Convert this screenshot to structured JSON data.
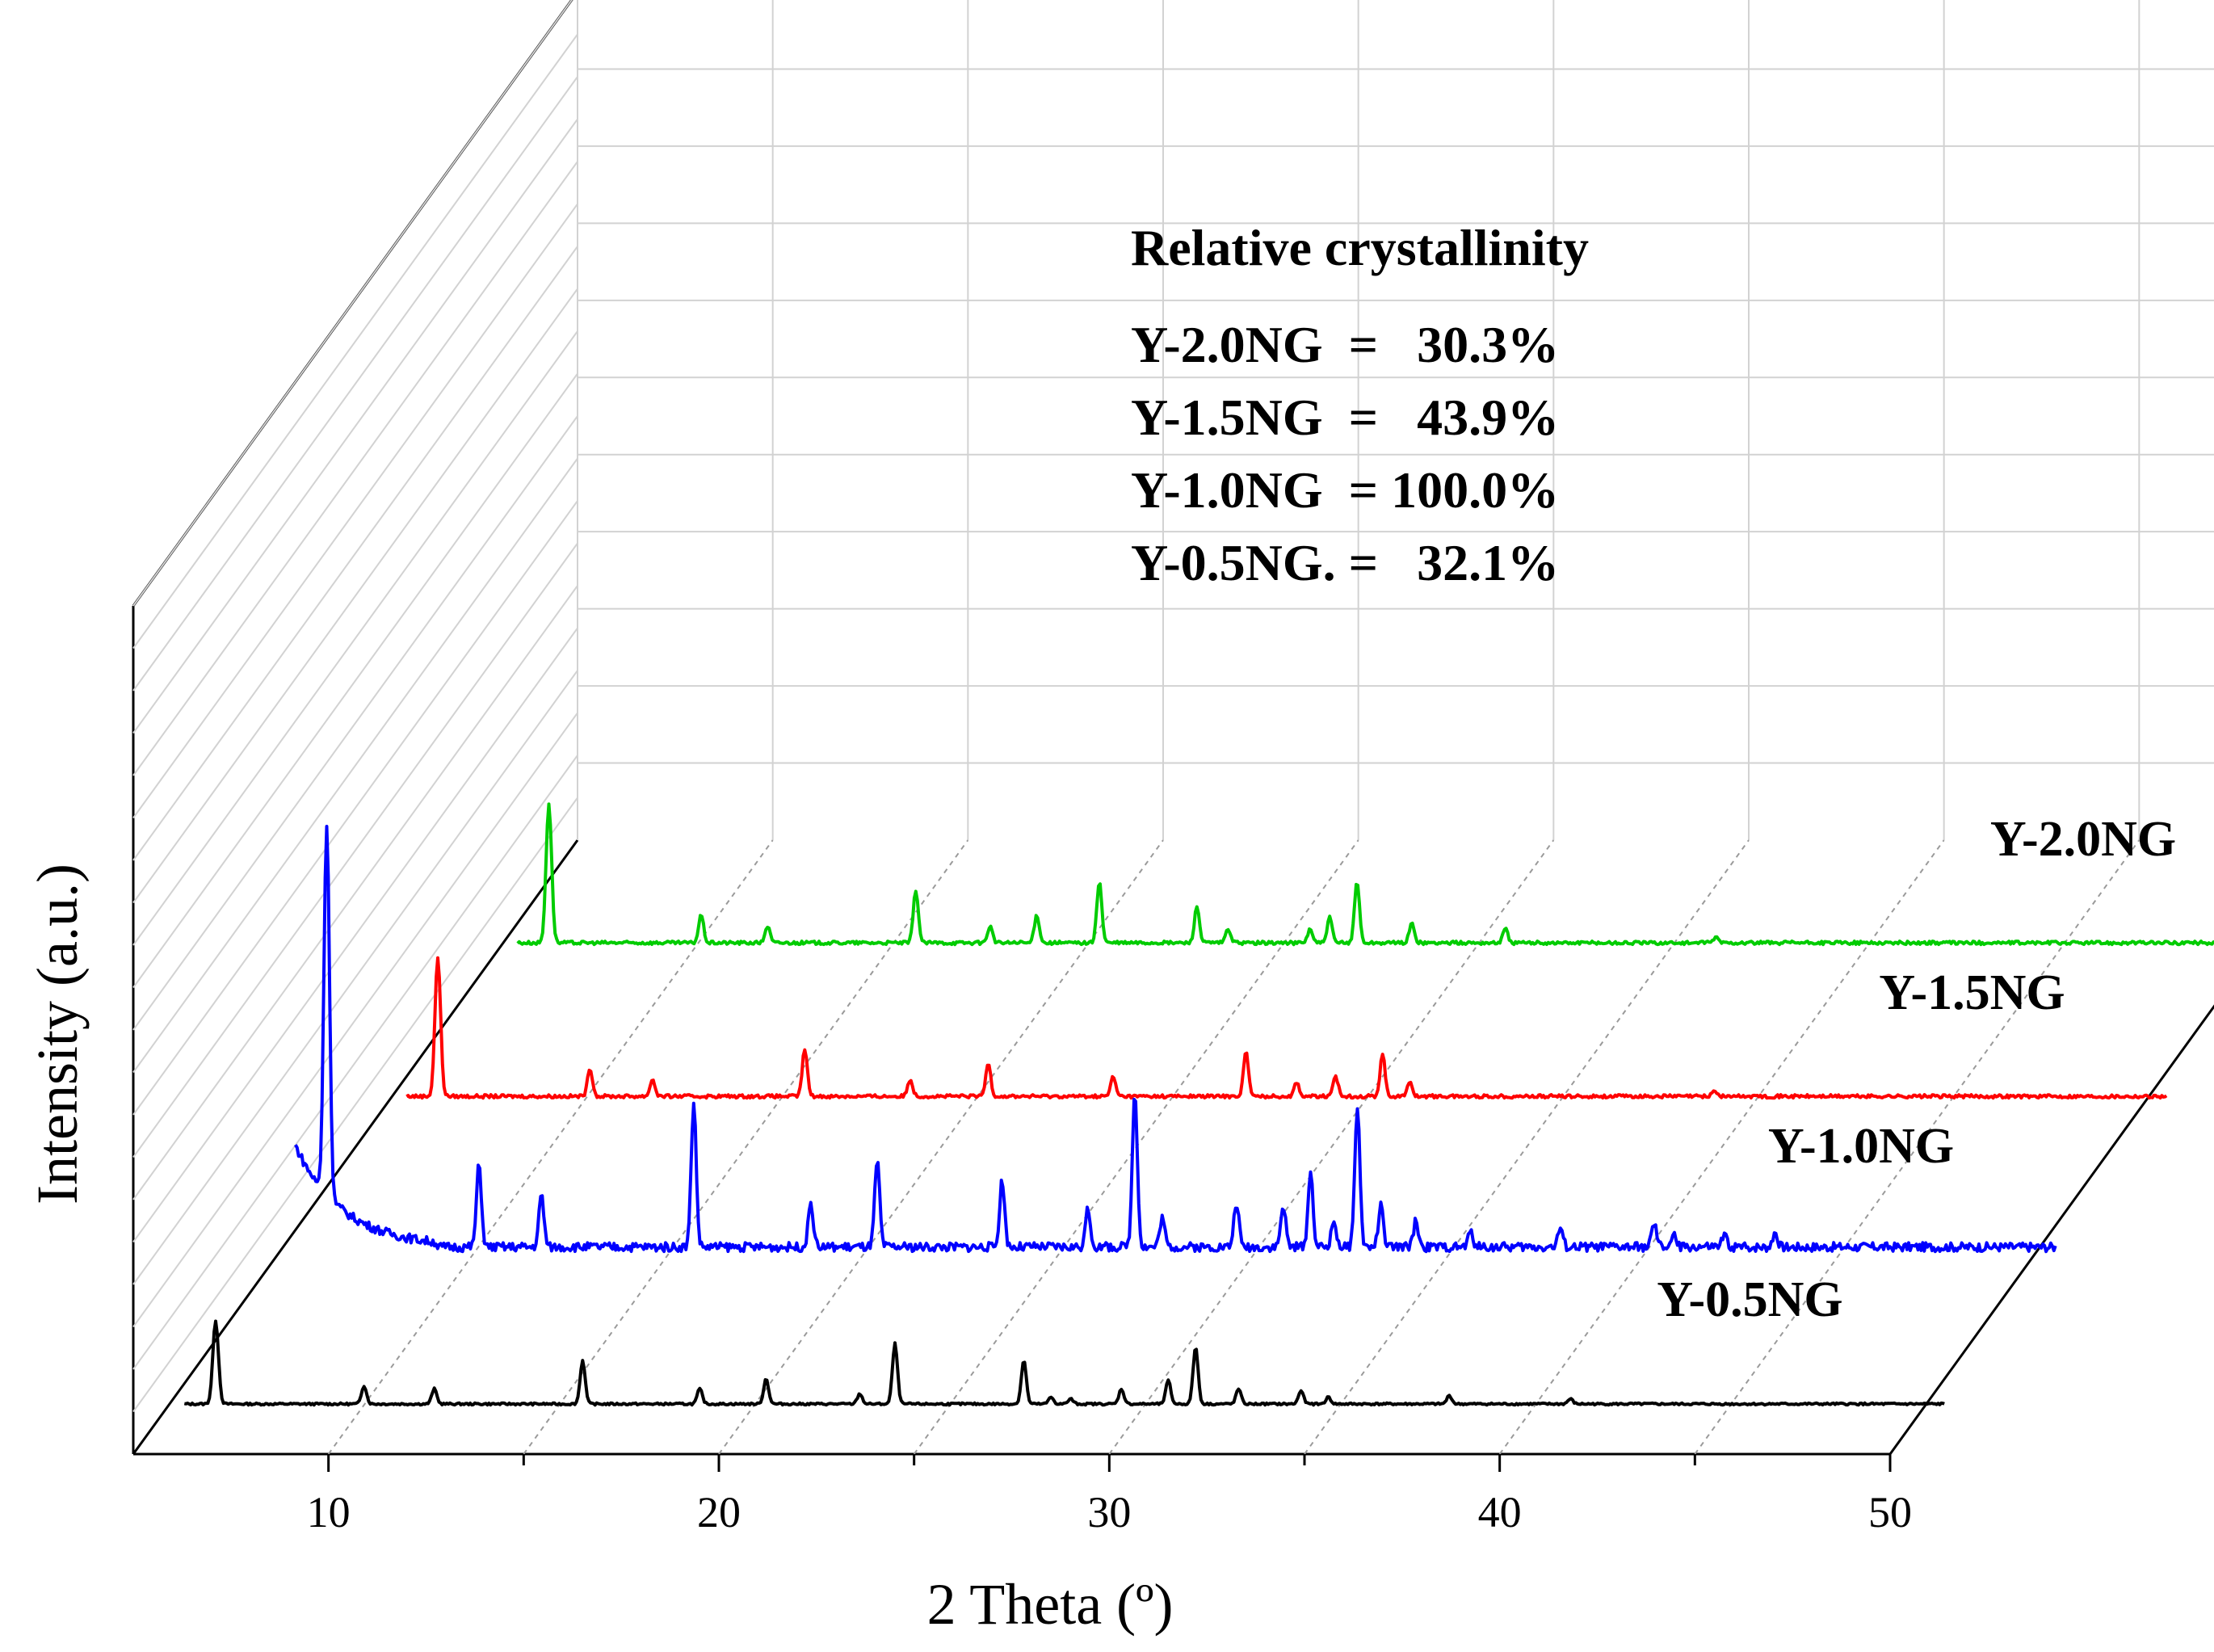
{
  "chart_data": {
    "type": "line",
    "style": "3D stacked waterfall (XRD patterns)",
    "xlabel": "2 Theta (º)",
    "ylabel": "Intensity (a.u.)",
    "xlim": [
      5,
      50
    ],
    "x_ticks": [
      10,
      20,
      30,
      40,
      50
    ],
    "x_tick_labels": [
      "10",
      "20",
      "30",
      "40",
      "50"
    ],
    "grid": true,
    "annotation": {
      "title": "Relative crystallinity",
      "lines": [
        "Y-2.0NG  =   30.3%",
        "Y-1.5NG  =   43.9%",
        "Y-1.0NG  = 100.0%",
        "Y-0.5NG. =   32.1%"
      ]
    },
    "series": [
      {
        "name": "Y-0.5NG",
        "label": "Y-0.5NG",
        "color": "#000000",
        "depth": 0,
        "peaks": [
          [
            6.2,
            100
          ],
          [
            10.0,
            22
          ],
          [
            11.8,
            18
          ],
          [
            15.6,
            52
          ],
          [
            18.6,
            18
          ],
          [
            20.3,
            30
          ],
          [
            22.7,
            12
          ],
          [
            23.6,
            72
          ],
          [
            26.9,
            52
          ],
          [
            27.6,
            8
          ],
          [
            28.1,
            6
          ],
          [
            29.4,
            18
          ],
          [
            30.6,
            28
          ],
          [
            31.3,
            68
          ],
          [
            32.4,
            18
          ],
          [
            34.0,
            16
          ],
          [
            34.7,
            8
          ],
          [
            37.8,
            10
          ],
          [
            40.9,
            6
          ]
        ]
      },
      {
        "name": "Y-1.0NG",
        "label": "Y-1.0NG",
        "color": "#0000ff",
        "depth": 1,
        "peaks": [
          [
            6.2,
            100
          ],
          [
            10.1,
            22
          ],
          [
            11.7,
            14
          ],
          [
            15.6,
            39
          ],
          [
            18.6,
            12
          ],
          [
            20.3,
            23
          ],
          [
            23.5,
            18
          ],
          [
            25.7,
            10
          ],
          [
            26.9,
            42
          ],
          [
            27.6,
            8
          ],
          [
            29.5,
            12
          ],
          [
            30.7,
            11
          ],
          [
            31.4,
            20
          ],
          [
            32.0,
            7
          ],
          [
            32.6,
            38
          ],
          [
            33.2,
            11
          ],
          [
            34.1,
            7
          ],
          [
            35.5,
            4
          ],
          [
            37.8,
            5
          ],
          [
            40.2,
            6
          ],
          [
            40.7,
            3
          ],
          [
            42.0,
            3
          ],
          [
            43.3,
            4
          ]
        ]
      },
      {
        "name": "Y-1.5NG",
        "label": "Y-1.5NG",
        "color": "#ff0000",
        "depth": 2,
        "peaks": [
          [
            6.2,
            100
          ],
          [
            10.1,
            20
          ],
          [
            11.7,
            12
          ],
          [
            15.6,
            34
          ],
          [
            18.3,
            12
          ],
          [
            20.3,
            24
          ],
          [
            23.5,
            14
          ],
          [
            26.9,
            32
          ],
          [
            28.2,
            10
          ],
          [
            29.2,
            14
          ],
          [
            30.4,
            30
          ],
          [
            31.1,
            10
          ],
          [
            38.9,
            4
          ]
        ]
      },
      {
        "name": "Y-2.0NG",
        "label": "Y-2.0NG",
        "color": "#00cc00",
        "depth": 3,
        "peaks": [
          [
            6.2,
            100
          ],
          [
            10.1,
            20
          ],
          [
            11.8,
            12
          ],
          [
            15.6,
            38
          ],
          [
            17.5,
            12
          ],
          [
            18.7,
            20
          ],
          [
            20.3,
            44
          ],
          [
            22.8,
            26
          ],
          [
            23.6,
            10
          ],
          [
            25.7,
            10
          ],
          [
            26.2,
            18
          ],
          [
            26.9,
            44
          ],
          [
            28.3,
            14
          ],
          [
            30.7,
            10
          ],
          [
            36.1,
            4
          ]
        ]
      }
    ]
  }
}
